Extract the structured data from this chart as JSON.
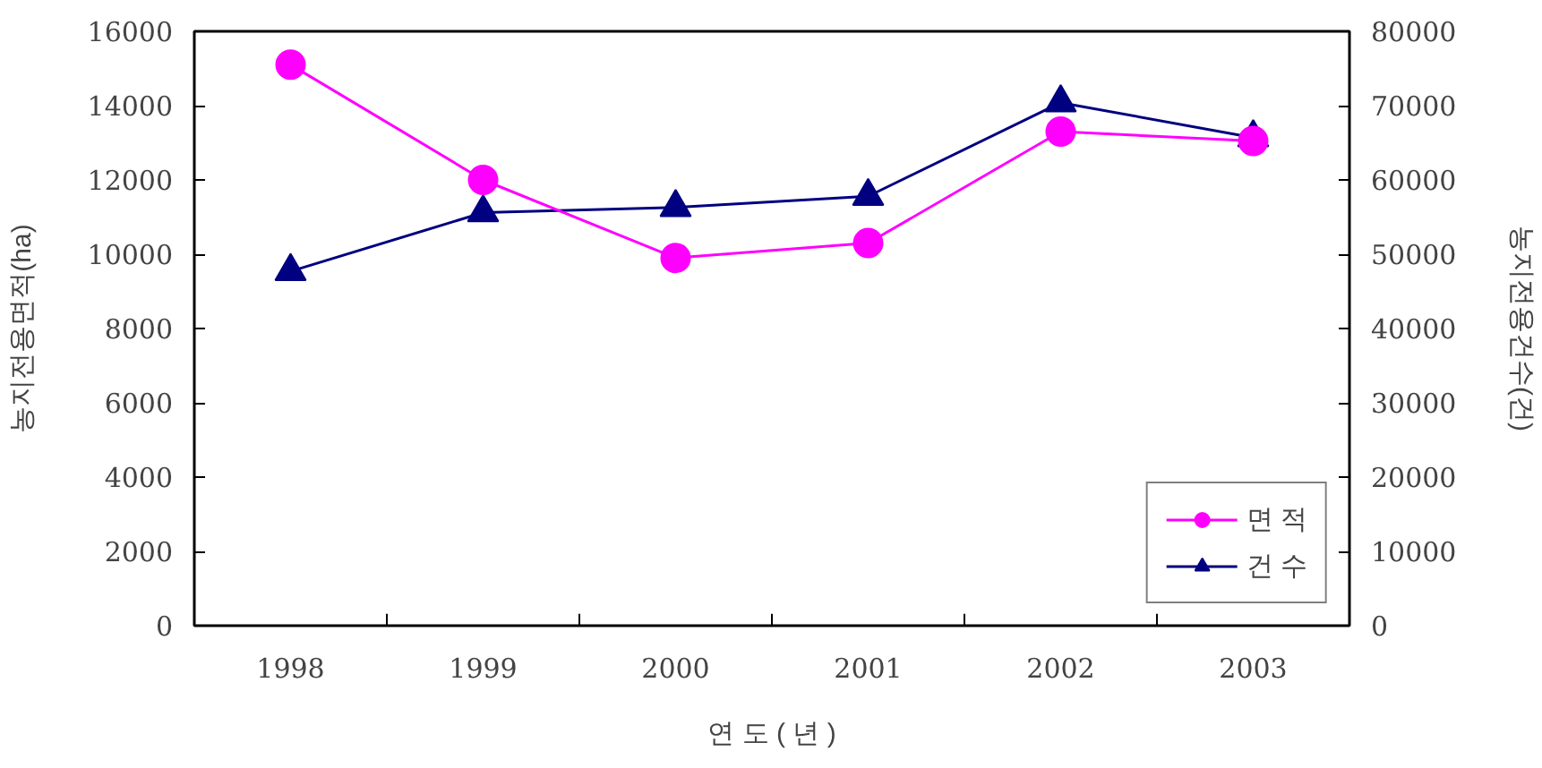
{
  "chart_data": {
    "type": "line",
    "xlabel": "연 도 ( 년 )",
    "ylabel": "농지전용면적(ha)",
    "y2label": "농지전용건수(건)",
    "categories": [
      "1998",
      "1999",
      "2000",
      "2001",
      "2002",
      "2003"
    ],
    "series": [
      {
        "name": "면 적",
        "color": "#ff00ff",
        "marker": "circle",
        "values": [
          15100,
          12000,
          9900,
          10300,
          13300,
          13050
        ]
      },
      {
        "name": "건 수",
        "color": "#000080",
        "marker": "triangle",
        "axis": "y2",
        "values": [
          47700,
          55600,
          56300,
          57800,
          70400,
          65700
        ]
      }
    ],
    "ylim": [
      0,
      16000
    ],
    "yticks": [
      0,
      2000,
      4000,
      6000,
      8000,
      10000,
      12000,
      14000,
      16000
    ],
    "y2lim": [
      0,
      80000
    ],
    "y2ticks": [
      0,
      10000,
      20000,
      30000,
      40000,
      50000,
      60000,
      70000,
      80000
    ],
    "grid": false,
    "legend": "bottom right",
    "line_style": "solid"
  }
}
